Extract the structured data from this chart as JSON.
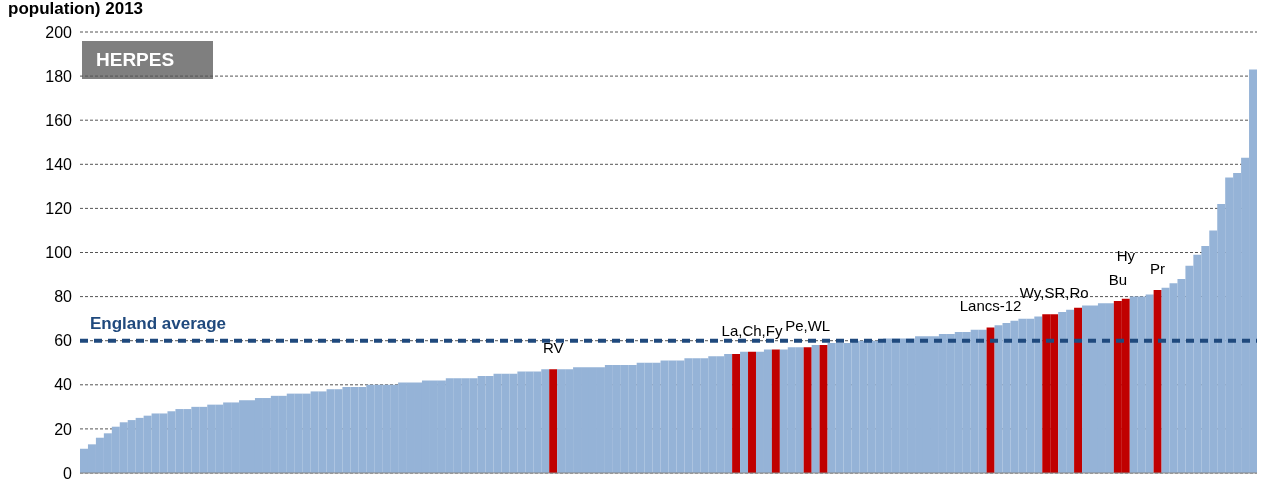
{
  "chart_data": {
    "type": "bar",
    "title": "population) 2013",
    "annotations": [
      "HERPES"
    ],
    "categories": [
      null,
      null,
      null,
      null,
      null,
      null,
      null,
      null,
      null,
      null,
      null,
      null,
      null,
      null,
      null,
      null,
      null,
      null,
      null,
      null,
      null,
      null,
      null,
      null,
      null,
      null,
      null,
      null,
      null,
      null,
      null,
      null,
      null,
      null,
      null,
      null,
      null,
      null,
      null,
      null,
      null,
      null,
      null,
      null,
      null,
      null,
      null,
      null,
      null,
      null,
      null,
      null,
      null,
      null,
      null,
      null,
      null,
      null,
      null,
      null,
      null,
      null,
      null,
      null,
      null,
      null,
      null,
      null,
      null,
      null,
      null,
      null,
      null,
      null,
      null,
      null,
      null,
      null,
      null,
      null,
      null,
      null,
      null,
      null,
      null,
      null,
      null,
      null,
      null,
      null,
      null,
      null,
      null,
      null,
      null,
      null,
      null,
      null,
      null,
      null,
      null,
      null,
      null,
      null,
      null,
      null,
      null,
      null,
      null,
      null,
      null,
      null,
      null,
      null,
      null,
      null,
      null,
      null,
      null,
      null,
      null,
      null,
      null,
      null,
      null,
      null,
      null,
      null,
      null,
      null,
      null,
      null,
      null,
      null,
      null,
      null,
      null,
      null,
      null,
      null,
      null,
      null,
      null,
      null,
      null,
      null,
      null,
      null
    ],
    "values": [
      11,
      13,
      16,
      18,
      21,
      23,
      24,
      25,
      26,
      27,
      27,
      28,
      29,
      29,
      30,
      30,
      31,
      31,
      32,
      32,
      33,
      33,
      34,
      34,
      35,
      35,
      36,
      36,
      36,
      37,
      37,
      38,
      38,
      39,
      39,
      39,
      40,
      40,
      40,
      40,
      41,
      41,
      41,
      42,
      42,
      42,
      43,
      43,
      43,
      43,
      44,
      44,
      45,
      45,
      45,
      46,
      46,
      46,
      47,
      47,
      47,
      47,
      48,
      48,
      48,
      48,
      49,
      49,
      49,
      49,
      50,
      50,
      50,
      51,
      51,
      51,
      52,
      52,
      52,
      53,
      53,
      54,
      54,
      55,
      55,
      55,
      56,
      56,
      56,
      57,
      57,
      57,
      58,
      58,
      59,
      59,
      59,
      60,
      60,
      60,
      60,
      61,
      61,
      61,
      61,
      62,
      62,
      62,
      63,
      63,
      64,
      64,
      65,
      65,
      66,
      67,
      68,
      69,
      70,
      70,
      71,
      72,
      72,
      73,
      74,
      75,
      76,
      76,
      77,
      77,
      78,
      79,
      80,
      80,
      81,
      83,
      84,
      86,
      88,
      94,
      99,
      103,
      110,
      122,
      134,
      136,
      143,
      183
    ],
    "colors": [
      "#95b3d7",
      "#95b3d7",
      "#95b3d7",
      "#95b3d7",
      "#95b3d7",
      "#95b3d7",
      "#95b3d7",
      "#95b3d7",
      "#95b3d7",
      "#95b3d7",
      "#95b3d7",
      "#95b3d7",
      "#95b3d7",
      "#95b3d7",
      "#95b3d7",
      "#95b3d7",
      "#95b3d7",
      "#95b3d7",
      "#95b3d7",
      "#95b3d7",
      "#95b3d7",
      "#95b3d7",
      "#95b3d7",
      "#95b3d7",
      "#95b3d7",
      "#95b3d7",
      "#95b3d7",
      "#95b3d7",
      "#95b3d7",
      "#95b3d7",
      "#95b3d7",
      "#95b3d7",
      "#95b3d7",
      "#95b3d7",
      "#95b3d7",
      "#95b3d7",
      "#95b3d7",
      "#95b3d7",
      "#95b3d7",
      "#95b3d7",
      "#95b3d7",
      "#95b3d7",
      "#95b3d7",
      "#95b3d7",
      "#95b3d7",
      "#95b3d7",
      "#95b3d7",
      "#95b3d7",
      "#95b3d7",
      "#95b3d7",
      "#95b3d7",
      "#95b3d7",
      "#95b3d7",
      "#95b3d7",
      "#95b3d7",
      "#95b3d7",
      "#95b3d7",
      "#95b3d7",
      "#95b3d7",
      "#c00000",
      "#95b3d7",
      "#95b3d7",
      "#95b3d7",
      "#95b3d7",
      "#95b3d7",
      "#95b3d7",
      "#95b3d7",
      "#95b3d7",
      "#95b3d7",
      "#95b3d7",
      "#95b3d7",
      "#95b3d7",
      "#95b3d7",
      "#95b3d7",
      "#95b3d7",
      "#95b3d7",
      "#95b3d7",
      "#95b3d7",
      "#95b3d7",
      "#95b3d7",
      "#95b3d7",
      "#95b3d7",
      "#c00000",
      "#95b3d7",
      "#c00000",
      "#95b3d7",
      "#95b3d7",
      "#c00000",
      "#95b3d7",
      "#95b3d7",
      "#95b3d7",
      "#c00000",
      "#95b3d7",
      "#c00000",
      "#95b3d7",
      "#95b3d7",
      "#95b3d7",
      "#95b3d7",
      "#95b3d7",
      "#95b3d7",
      "#95b3d7",
      "#95b3d7",
      "#95b3d7",
      "#95b3d7",
      "#95b3d7",
      "#95b3d7",
      "#95b3d7",
      "#95b3d7",
      "#95b3d7",
      "#95b3d7",
      "#95b3d7",
      "#95b3d7",
      "#95b3d7",
      "#95b3d7",
      "#c00000",
      "#95b3d7",
      "#95b3d7",
      "#95b3d7",
      "#95b3d7",
      "#95b3d7",
      "#95b3d7",
      "#c00000",
      "#c00000",
      "#95b3d7",
      "#95b3d7",
      "#c00000",
      "#95b3d7",
      "#95b3d7",
      "#95b3d7",
      "#95b3d7",
      "#c00000",
      "#c00000",
      "#95b3d7",
      "#95b3d7",
      "#95b3d7",
      "#c00000",
      "#95b3d7",
      "#95b3d7",
      "#95b3d7",
      "#95b3d7",
      "#95b3d7",
      "#95b3d7",
      "#95b3d7",
      "#95b3d7",
      "#95b3d7",
      "#95b3d7",
      "#95b3d7",
      "#95b3d7"
    ],
    "value_labels": [
      null,
      null,
      null,
      null,
      null,
      null,
      null,
      null,
      null,
      null,
      null,
      null,
      null,
      null,
      null,
      null,
      null,
      null,
      null,
      null,
      null,
      null,
      null,
      null,
      null,
      null,
      null,
      null,
      null,
      null,
      null,
      null,
      null,
      null,
      null,
      null,
      null,
      null,
      null,
      null,
      null,
      null,
      null,
      null,
      null,
      null,
      null,
      null,
      null,
      null,
      null,
      null,
      null,
      null,
      null,
      null,
      null,
      null,
      null,
      "RV",
      null,
      null,
      null,
      null,
      null,
      null,
      null,
      null,
      null,
      null,
      null,
      null,
      null,
      null,
      null,
      null,
      null,
      null,
      null,
      null,
      null,
      null,
      null,
      null,
      "La,Ch,Fy",
      null,
      null,
      null,
      null,
      null,
      null,
      "Pe,WL",
      null,
      null,
      null,
      null,
      null,
      null,
      null,
      null,
      null,
      null,
      null,
      null,
      null,
      null,
      null,
      null,
      null,
      null,
      null,
      null,
      null,
      null,
      "Lancs-12",
      null,
      null,
      null,
      null,
      null,
      null,
      null,
      "Wy,SR,Ro",
      null,
      null,
      null,
      null,
      null,
      null,
      null,
      "Bu",
      "Hy",
      null,
      null,
      null,
      "Pr",
      null,
      null,
      null,
      null,
      null,
      null,
      null,
      null,
      null,
      null,
      null,
      null
    ],
    "ylim": [
      0,
      200
    ],
    "yticks": [
      0,
      20,
      40,
      60,
      80,
      100,
      120,
      140,
      160,
      180,
      200
    ],
    "grid": "y",
    "tick_labels": "y",
    "ref_lines": [
      {
        "axis": "y",
        "value": 60,
        "label": "England average",
        "color": "#1f497d",
        "line_style": "dashed"
      }
    ]
  }
}
